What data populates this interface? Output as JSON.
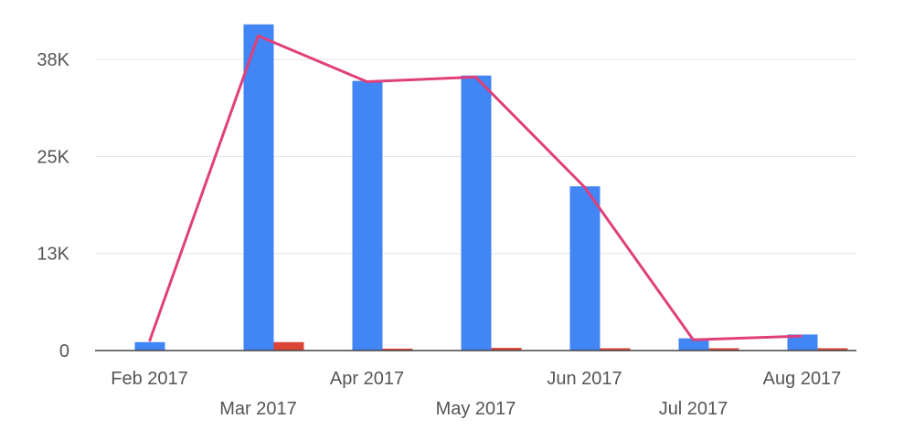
{
  "chart_data": {
    "type": "bar",
    "title": "",
    "xlabel": "",
    "ylabel": "",
    "categories": [
      "Feb 2017",
      "Mar 2017",
      "Apr 2017",
      "May 2017",
      "Jun 2017",
      "Jul 2017",
      "Aug 2017"
    ],
    "ylim": [
      0,
      43500
    ],
    "yticks": [
      {
        "value": 0,
        "label": "0"
      },
      {
        "value": 12700,
        "label": "13K"
      },
      {
        "value": 25400,
        "label": "25K"
      },
      {
        "value": 38100,
        "label": "38K"
      }
    ],
    "grid": true,
    "legend": "none",
    "series": [
      {
        "type": "bar",
        "color": "#4285f4",
        "values": [
          1100,
          42700,
          35300,
          36000,
          21500,
          1600,
          2100
        ]
      },
      {
        "type": "bar",
        "color": "#db4437",
        "values": [
          0,
          1100,
          250,
          350,
          300,
          300,
          300
        ]
      },
      {
        "type": "line",
        "color": "#e0407a",
        "values": [
          1200,
          41200,
          35200,
          35800,
          21400,
          1400,
          1900
        ]
      }
    ]
  }
}
